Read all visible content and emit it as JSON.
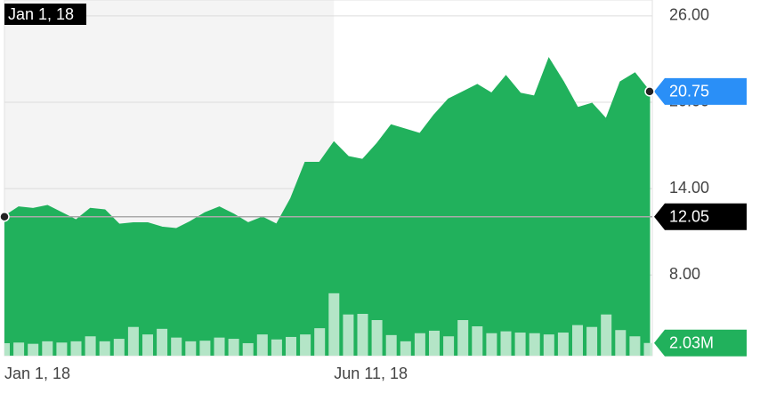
{
  "chart_data": {
    "type": "area",
    "categories": [
      "Jan 1, 18",
      null,
      null,
      null,
      null,
      null,
      null,
      null,
      null,
      null,
      null,
      null,
      null,
      null,
      null,
      null,
      null,
      null,
      null,
      null,
      null,
      null,
      null,
      "Jun 11, 18",
      null,
      null,
      null,
      null,
      null,
      null,
      null,
      null,
      null,
      null,
      null,
      null,
      null,
      null,
      null,
      null,
      null,
      null,
      null,
      null,
      null,
      null
    ],
    "series": [
      {
        "color": "#21b15c",
        "values": [
          12.05,
          12.7,
          12.6,
          12.8,
          12.3,
          11.8,
          12.6,
          12.5,
          11.5,
          11.6,
          11.6,
          11.3,
          11.2,
          11.7,
          12.3,
          12.7,
          12.2,
          11.6,
          12.0,
          11.5,
          13.3,
          15.8,
          15.8,
          17.2,
          16.2,
          16.0,
          17.1,
          18.4,
          18.1,
          17.8,
          19.1,
          20.2,
          20.7,
          21.2,
          20.6,
          21.8,
          20.6,
          20.4,
          23.0,
          21.4,
          19.6,
          19.9,
          18.8,
          21.4,
          22.0,
          20.75
        ]
      },
      {
        "color": "#c4ebd3",
        "axis": "y2",
        "values": [
          2.0,
          2.1,
          1.9,
          2.3,
          2.1,
          2.3,
          3.1,
          2.3,
          2.7,
          4.6,
          3.4,
          4.3,
          2.9,
          2.3,
          2.4,
          2.9,
          2.7,
          2.0,
          3.4,
          2.6,
          3.0,
          3.4,
          4.4,
          10.0,
          6.6,
          6.7,
          5.7,
          3.3,
          2.3,
          3.6,
          4.0,
          3.1,
          5.7,
          4.7,
          3.6,
          3.9,
          3.7,
          3.6,
          3.4,
          3.7,
          4.9,
          4.6,
          6.6,
          4.1,
          3.1,
          2.03
        ]
      }
    ],
    "ylim": [
      2.4,
      27.1
    ],
    "y2lim": [
      0,
      57
    ],
    "yticks": [
      {
        "value": 8,
        "label": "8.00"
      },
      {
        "value": 14,
        "label": "14.00"
      },
      {
        "value": 20,
        "label": "20.00"
      },
      {
        "value": 26,
        "label": "26.00"
      }
    ],
    "grid": true,
    "reference_line": 12.05,
    "crosshair_label": "Jan 1, 18",
    "shade_until": "Jun 11, 18",
    "last_volume_label": "2.03M",
    "tag_colors": {
      "last": "#2a8ff7",
      "reference": "#000000",
      "volume": "#21b15c"
    }
  }
}
